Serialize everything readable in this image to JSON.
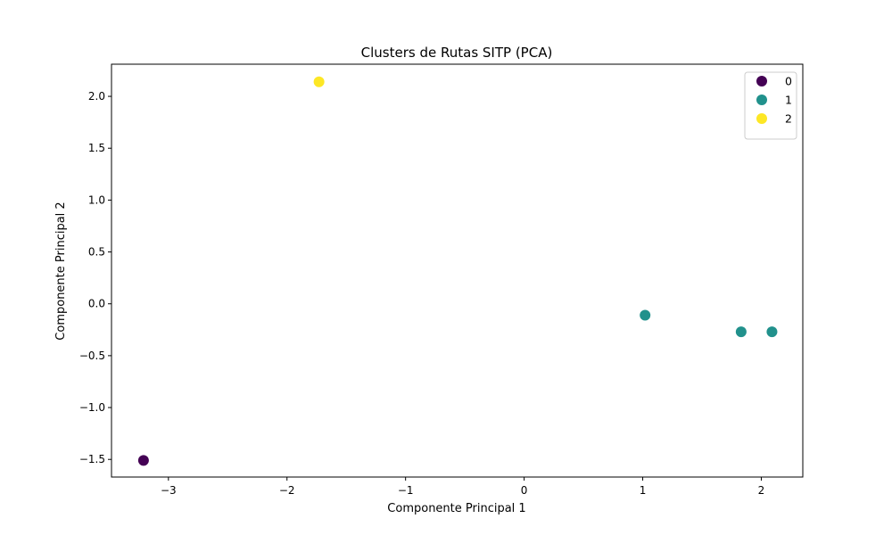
{
  "chart_data": {
    "type": "scatter",
    "title": "Clusters de Rutas SITP (PCA)",
    "xlabel": "Componente Principal 1",
    "ylabel": "Componente Principal 2",
    "xlim": [
      -3.48,
      2.35
    ],
    "ylim": [
      -1.67,
      2.31
    ],
    "xticks": [
      -3,
      -2,
      -1,
      0,
      1,
      2
    ],
    "xtick_labels": [
      "−3",
      "−2",
      "−1",
      "0",
      "1",
      "2"
    ],
    "yticks": [
      -1.5,
      -1.0,
      -0.5,
      0.0,
      0.5,
      1.0,
      1.5,
      2.0
    ],
    "ytick_labels": [
      "−1.5",
      "−1.0",
      "−0.5",
      "0.0",
      "0.5",
      "1.0",
      "1.5",
      "2.0"
    ],
    "grid": false,
    "legend_position": "top-right",
    "series": [
      {
        "name": "0",
        "color": "#440154",
        "points": [
          [
            -3.21,
            -1.51
          ]
        ]
      },
      {
        "name": "1",
        "color": "#21918c",
        "points": [
          [
            1.02,
            -0.11
          ],
          [
            1.83,
            -0.27
          ],
          [
            2.09,
            -0.27
          ]
        ]
      },
      {
        "name": "2",
        "color": "#fde725",
        "points": [
          [
            -1.73,
            2.14
          ]
        ]
      }
    ]
  }
}
